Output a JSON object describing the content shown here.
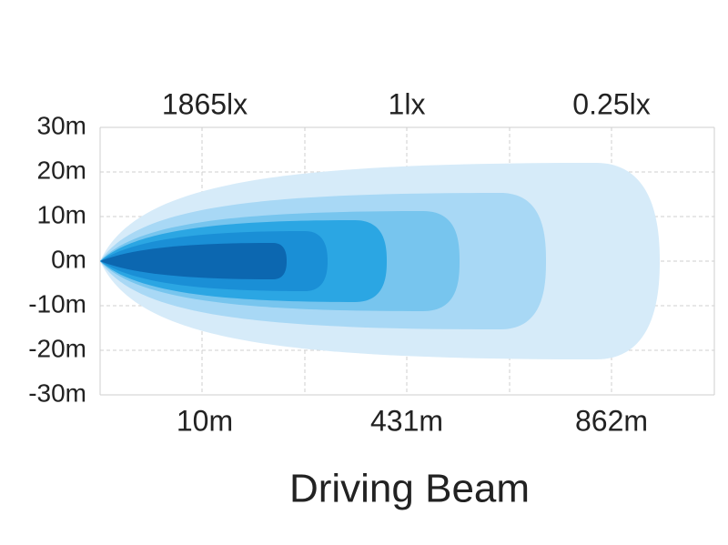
{
  "title": "Driving Beam",
  "y_axis": {
    "labels": [
      "30m",
      "20m",
      "10m",
      "0m",
      "-10m",
      "-20m",
      "-30m"
    ]
  },
  "top_labels": [
    "1865lx",
    "1lx",
    "0.25lx"
  ],
  "bottom_labels": [
    "10m",
    "431m",
    "862m"
  ]
}
